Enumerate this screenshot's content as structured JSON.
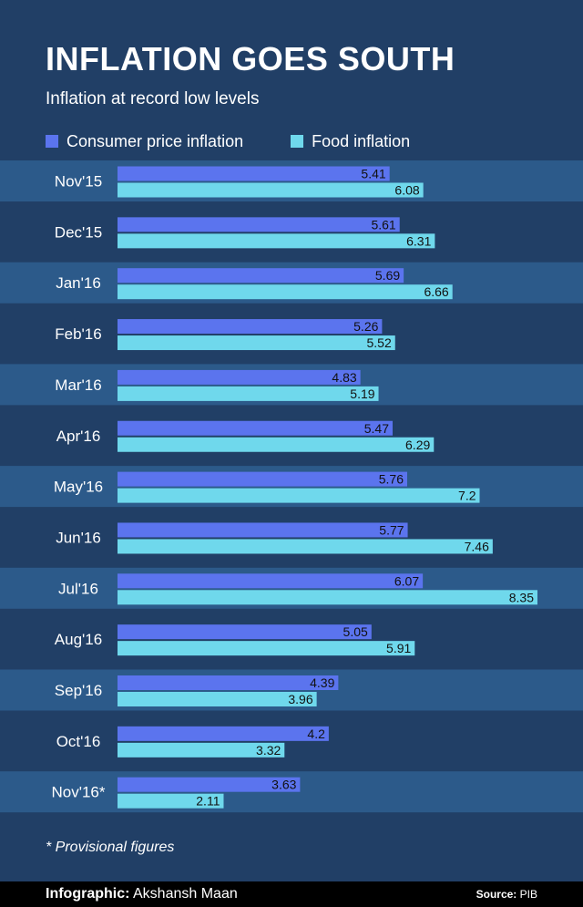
{
  "header": {
    "title": "INFLATION GOES SOUTH",
    "subtitle": "Inflation at record low levels"
  },
  "legend": [
    {
      "label": "Consumer price inflation",
      "color": "#5b74ee"
    },
    {
      "label": "Food inflation",
      "color": "#6fd8ec"
    }
  ],
  "chart_data": {
    "type": "bar",
    "orientation": "horizontal",
    "title": "INFLATION GOES SOUTH",
    "subtitle": "Inflation at record low levels",
    "categories": [
      "Nov'15",
      "Dec'15",
      "Jan'16",
      "Feb'16",
      "Mar'16",
      "Apr'16",
      "May'16",
      "Jun'16",
      "Jul'16",
      "Aug'16",
      "Sep'16",
      "Oct'16",
      "Nov'16*"
    ],
    "series": [
      {
        "name": "Consumer price inflation",
        "color": "#5b74ee",
        "values": [
          5.41,
          5.61,
          5.69,
          5.26,
          4.83,
          5.47,
          5.76,
          5.77,
          6.07,
          5.05,
          4.39,
          4.2,
          3.63
        ]
      },
      {
        "name": "Food inflation",
        "color": "#6fd8ec",
        "values": [
          6.08,
          6.31,
          6.66,
          5.52,
          5.19,
          6.29,
          7.2,
          7.46,
          8.35,
          5.91,
          3.96,
          3.32,
          2.11
        ]
      }
    ],
    "value_labels": {
      "Consumer price inflation": [
        "5.41",
        "5.61",
        "5.69",
        "5.26",
        "4.83",
        "5.47",
        "5.76",
        "5.77",
        "6.07",
        "5.05",
        "4.39",
        "4.2",
        "3.63"
      ],
      "Food inflation": [
        "6.08",
        "6.31",
        "6.66",
        "5.52",
        "5.19",
        "6.29",
        "7.2",
        "7.46",
        "8.35",
        "5.91",
        "3.96",
        "3.32",
        "2.11"
      ]
    },
    "xlim": [
      0,
      8.35
    ],
    "grid": false,
    "legend_position": "top-left"
  },
  "colors": {
    "background": "#213f66",
    "band": "#2c5a8a",
    "footer": "#000000"
  },
  "note": "* Provisional figures",
  "footer": {
    "credit_label": "Infographic:",
    "credit_name": "Akshansh Maan",
    "source_label": "Source:",
    "source_name": "PIB"
  }
}
